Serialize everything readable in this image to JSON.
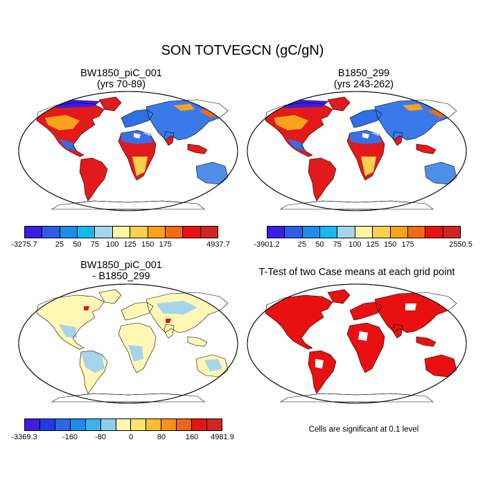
{
  "title": "SON TOTVEGCN (gC/gN)",
  "panels": {
    "p1": {
      "title1": "BW1850_piC_001",
      "title2": "(yrs 70-89)"
    },
    "p2": {
      "title1": "B1850_299",
      "title2": "(yrs 243-262)"
    },
    "p3": {
      "title1": "BW1850_piC_001",
      "title2": "- B1850_299"
    },
    "p4": {
      "title1": "T-Test of two Case means at each grid point"
    }
  },
  "colorbars": {
    "cb1": {
      "colors": [
        "#3b1ee0",
        "#2e5ee8",
        "#1e8ce8",
        "#18b8ee",
        "#a6d4ec",
        "#fff5a0",
        "#fcd04c",
        "#f7a21c",
        "#f26b12",
        "#e81010",
        "#d32424"
      ],
      "labels": [
        "-3275.7",
        "25",
        "50",
        "75",
        "100",
        "125",
        "150",
        "175",
        "4937.7"
      ]
    },
    "cb2": {
      "colors": [
        "#3b1ee0",
        "#2e5ee8",
        "#1e8ce8",
        "#18b8ee",
        "#a6d4ec",
        "#fff5a0",
        "#fcd04c",
        "#f7a21c",
        "#f26b12",
        "#e81010",
        "#d32424"
      ],
      "labels": [
        "-3901.2",
        "25",
        "50",
        "75",
        "100",
        "125",
        "150",
        "175",
        "2550.5"
      ]
    },
    "cb3": {
      "colors": [
        "#3b1ee0",
        "#1f3ce4",
        "#2b66e6",
        "#1e8ce8",
        "#3fb0ec",
        "#8ccfec",
        "#fff7b4",
        "#fde36a",
        "#fbbd30",
        "#f59218",
        "#f0621a",
        "#e81410",
        "#d32424"
      ],
      "labels": [
        "-3369.3",
        "-160",
        "-80",
        "0",
        "80",
        "160",
        "4981.9"
      ]
    }
  },
  "note": "Cells are significant at 0.1 level"
}
